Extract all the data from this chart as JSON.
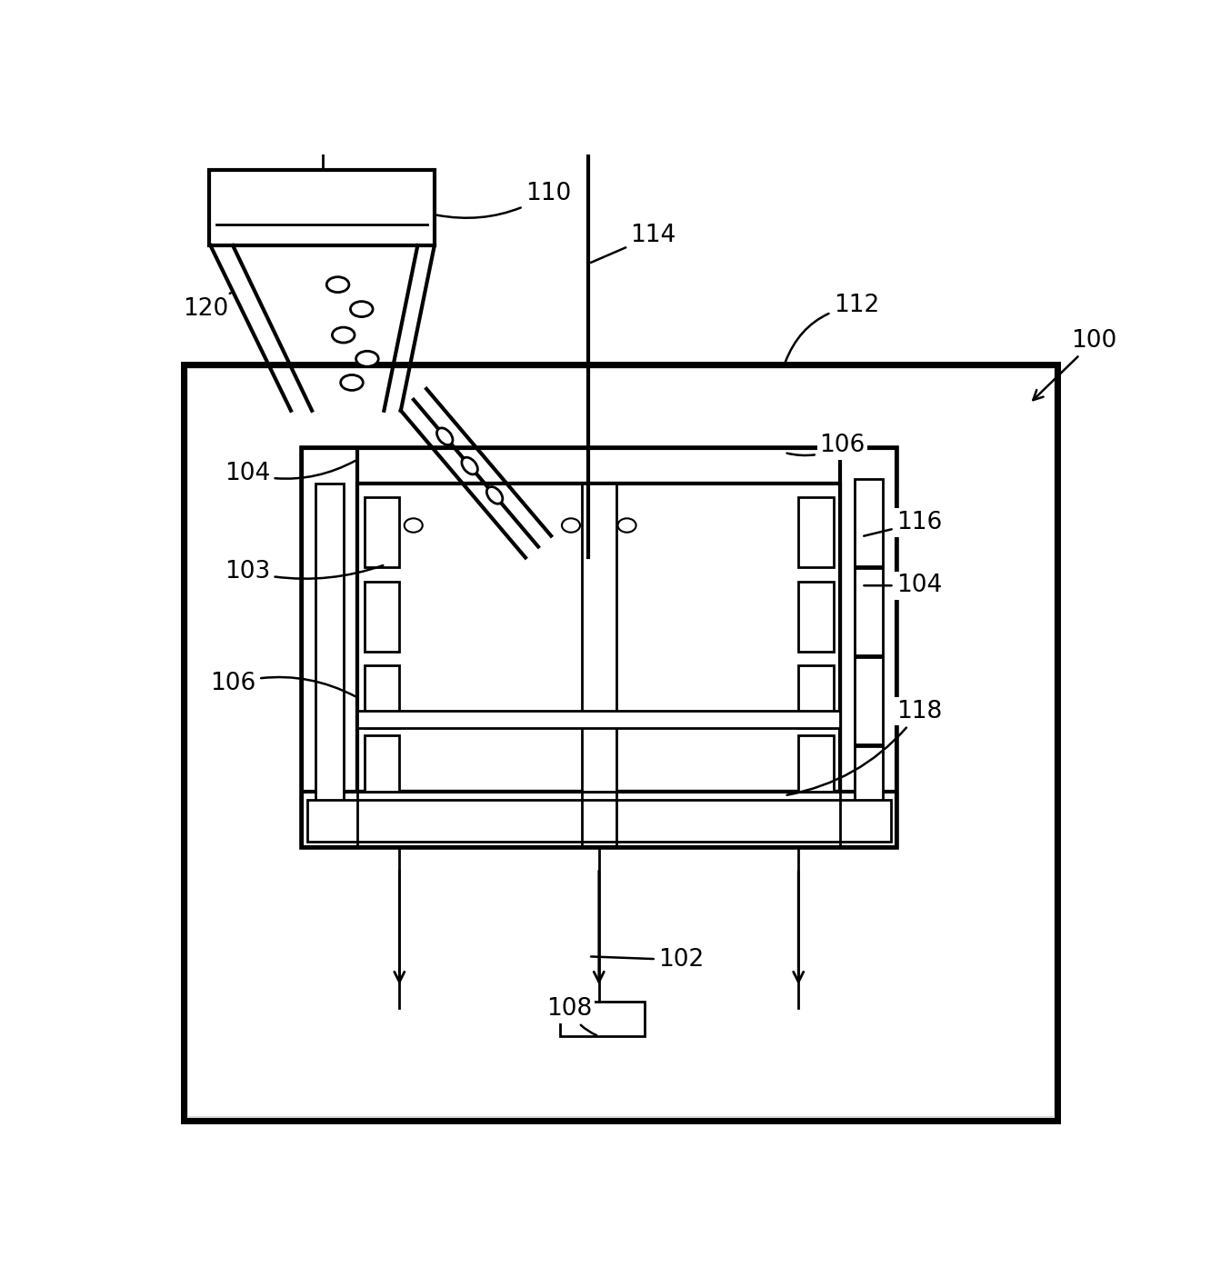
{
  "bg": "#ffffff",
  "lc": "#000000",
  "gray_fill": "#d8d8d8",
  "font_size": 19,
  "fig_w": 13.32,
  "fig_h": 14.16,
  "dpi": 100
}
